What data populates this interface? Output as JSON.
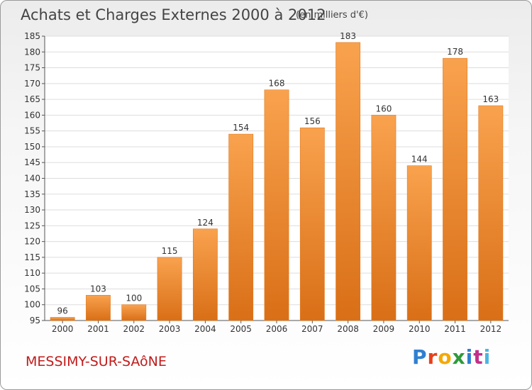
{
  "title": "Achats et Charges Externes 2000 à 2012",
  "subtitle": "(en milliers d'€)",
  "commune": "MESSIMY-SUR-SAôNE",
  "logo": {
    "letters": [
      "P",
      "r",
      "o",
      "x",
      "i",
      "t",
      "i"
    ],
    "colors": [
      "#2f7fd0",
      "#e7401a",
      "#f5a800",
      "#2f9a3a",
      "#2f7fd0",
      "#c2308a",
      "#4bb6e0"
    ]
  },
  "colors": {
    "bar_top": "#f9a24e",
    "bar_bottom": "#d96f17",
    "commune": "#c11b1b",
    "grid": "#dddddd"
  },
  "chart_data": {
    "type": "bar",
    "categories": [
      "2000",
      "2001",
      "2002",
      "2003",
      "2004",
      "2005",
      "2006",
      "2007",
      "2008",
      "2009",
      "2010",
      "2011",
      "2012"
    ],
    "values": [
      96,
      103,
      100,
      115,
      124,
      154,
      168,
      156,
      183,
      160,
      144,
      178,
      163
    ],
    "ylim": [
      95,
      185
    ],
    "yticks": [
      95,
      100,
      105,
      110,
      115,
      120,
      125,
      130,
      135,
      140,
      145,
      150,
      155,
      160,
      165,
      170,
      175,
      180,
      185
    ],
    "grid": true
  }
}
